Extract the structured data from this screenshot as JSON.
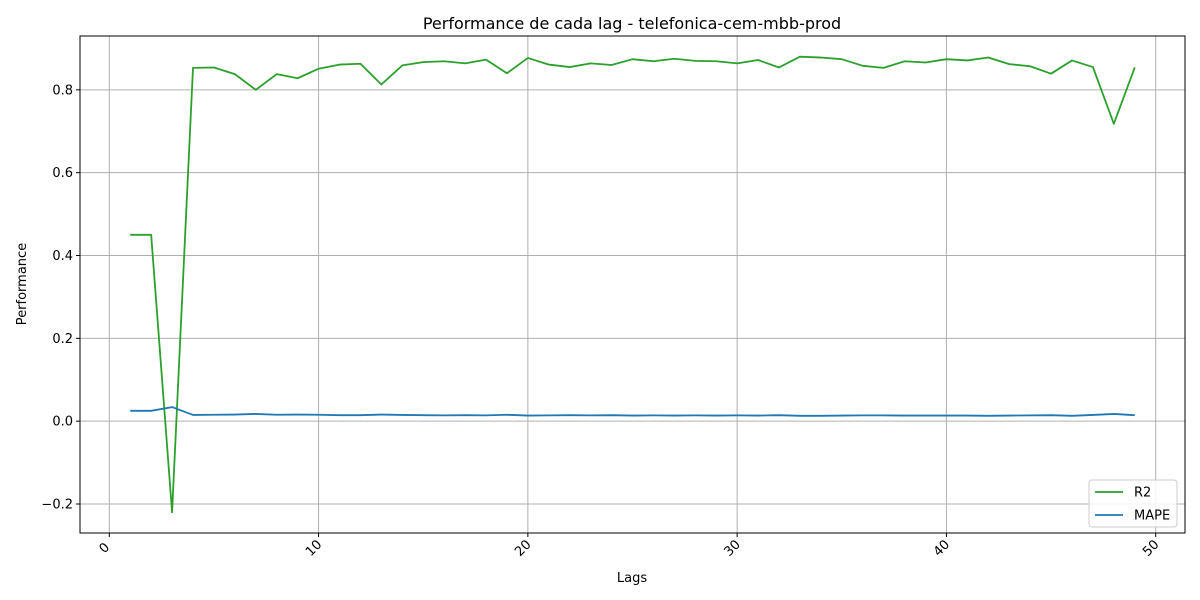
{
  "chart_data": {
    "type": "line",
    "title": "Performance de cada lag - telefonica-cem-mbb-prod",
    "xlabel": "Lags",
    "ylabel": "Performance",
    "xlim": [
      -1.4,
      51.4
    ],
    "ylim": [
      -0.27,
      0.93
    ],
    "xticks": [
      0,
      10,
      20,
      30,
      40,
      50
    ],
    "xtick_labels": [
      "0",
      "10",
      "20",
      "30",
      "40",
      "50"
    ],
    "xtick_rotation": 45,
    "yticks": [
      -0.2,
      0.0,
      0.2,
      0.4,
      0.6,
      0.8
    ],
    "ytick_labels": [
      "−0.2",
      "0.0",
      "0.2",
      "0.4",
      "0.6",
      "0.8"
    ],
    "grid": true,
    "legend_position": "lower-right",
    "x": [
      1,
      2,
      3,
      4,
      5,
      6,
      7,
      8,
      9,
      10,
      11,
      12,
      13,
      14,
      15,
      16,
      17,
      18,
      19,
      20,
      21,
      22,
      23,
      24,
      25,
      26,
      27,
      28,
      29,
      30,
      31,
      32,
      33,
      34,
      35,
      36,
      37,
      38,
      39,
      40,
      41,
      42,
      43,
      44,
      45,
      46,
      47,
      48,
      49
    ],
    "series": [
      {
        "name": "R2",
        "color": "#2ca02c",
        "values": [
          0.45,
          0.45,
          -0.22,
          0.853,
          0.854,
          0.838,
          0.8,
          0.838,
          0.828,
          0.851,
          0.861,
          0.863,
          0.813,
          0.859,
          0.867,
          0.869,
          0.864,
          0.873,
          0.84,
          0.877,
          0.861,
          0.855,
          0.864,
          0.86,
          0.874,
          0.869,
          0.875,
          0.87,
          0.869,
          0.864,
          0.872,
          0.854,
          0.88,
          0.878,
          0.874,
          0.858,
          0.853,
          0.869,
          0.866,
          0.874,
          0.871,
          0.878,
          0.862,
          0.857,
          0.839,
          0.871,
          0.855,
          0.718,
          0.854
        ]
      },
      {
        "name": "MAPE",
        "color": "#1f77b4",
        "values": [
          0.025,
          0.025,
          0.034,
          0.015,
          0.0155,
          0.016,
          0.0175,
          0.0155,
          0.016,
          0.0155,
          0.0145,
          0.0145,
          0.016,
          0.015,
          0.0145,
          0.014,
          0.0145,
          0.014,
          0.0155,
          0.0135,
          0.014,
          0.0145,
          0.014,
          0.0145,
          0.0135,
          0.014,
          0.0135,
          0.014,
          0.0135,
          0.014,
          0.0135,
          0.0145,
          0.013,
          0.013,
          0.0135,
          0.014,
          0.014,
          0.0135,
          0.0135,
          0.0135,
          0.0135,
          0.013,
          0.0135,
          0.014,
          0.0145,
          0.013,
          0.015,
          0.0175,
          0.0145
        ]
      }
    ]
  }
}
